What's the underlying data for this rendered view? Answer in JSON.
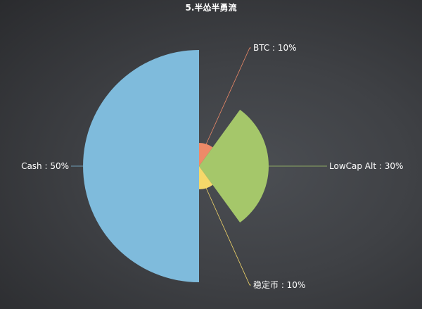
{
  "chart_data": {
    "type": "pie",
    "rose_type": "radius",
    "title": "5.半怂半勇流",
    "categories": [
      "BTC",
      "LowCap Alt",
      "稳定币",
      "Cash"
    ],
    "values": [
      10,
      30,
      10,
      50
    ],
    "labels": [
      "BTC : 10%",
      "LowCap Alt : 30%",
      "稳定币 : 10%",
      "Cash : 50%"
    ],
    "colors": [
      "#ee8a68",
      "#a5c76a",
      "#f5d86a",
      "#7fbbdc"
    ],
    "legend": "none"
  }
}
